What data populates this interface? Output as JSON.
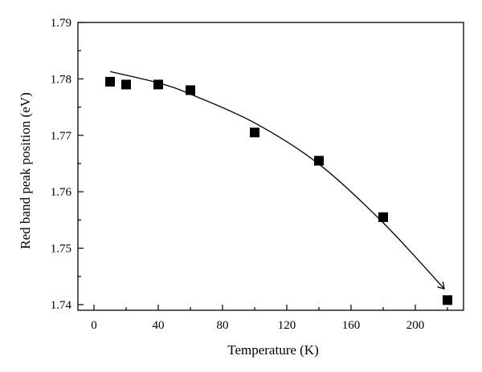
{
  "chart_data": {
    "type": "scatter",
    "xlabel": "Temperature (K)",
    "ylabel": "Red band peak position (eV)",
    "xlim": [
      -10,
      230
    ],
    "ylim": [
      1.739,
      1.79
    ],
    "xticks": [
      0,
      40,
      80,
      120,
      160,
      200
    ],
    "yticks": [
      1.74,
      1.75,
      1.76,
      1.77,
      1.78,
      1.79
    ],
    "series": [
      {
        "marker": "square",
        "color": "#000000",
        "x": [
          10,
          20,
          40,
          60,
          100,
          140,
          180,
          220
        ],
        "y": [
          1.7795,
          1.779,
          1.779,
          1.778,
          1.7705,
          1.7655,
          1.7555,
          1.7408
        ]
      }
    ],
    "fit_curve": {
      "style": "line-with-arrow",
      "x": [
        10,
        40,
        60,
        100,
        140,
        180,
        218
      ],
      "y": [
        1.7813,
        1.7793,
        1.7773,
        1.7722,
        1.7649,
        1.7545,
        1.7428
      ]
    }
  }
}
